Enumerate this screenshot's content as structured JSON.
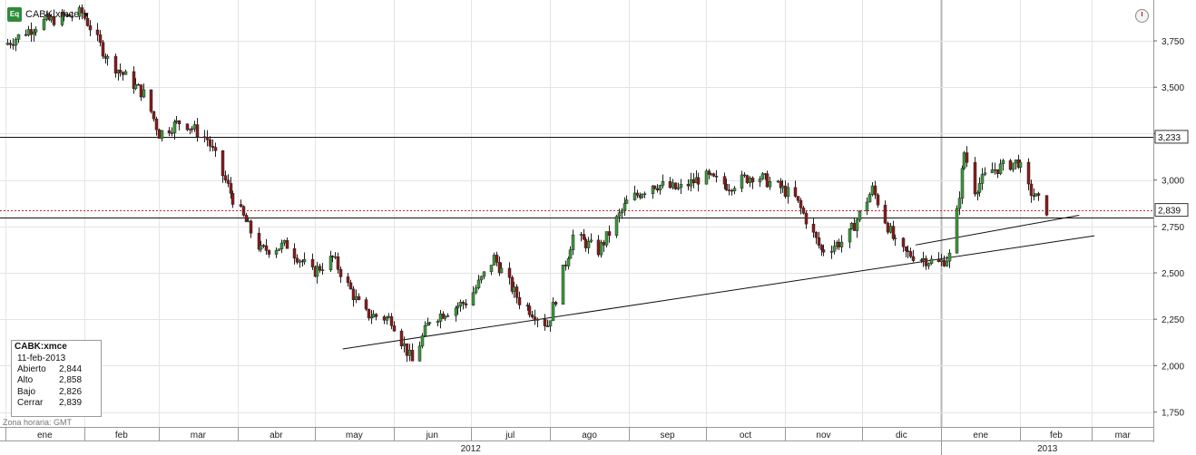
{
  "header": {
    "badge": "Eq",
    "symbol": "CABK:xmce",
    "dropdown_icon": "triangle-down-icon"
  },
  "info_box": {
    "symbol": "CABK:xmce",
    "date": "11-feb-2013",
    "rows": [
      {
        "label": "Abierto",
        "value": "2,844"
      },
      {
        "label": "Alto",
        "value": "2,858"
      },
      {
        "label": "Bajo",
        "value": "2,826"
      },
      {
        "label": "Cerrar",
        "value": "2,839"
      }
    ]
  },
  "timezone_label": "Zona horaria: GMT",
  "chart_data": {
    "type": "candlestick",
    "yaxis": {
      "ylim": [
        1.67,
        3.97
      ],
      "ticks": [
        1.75,
        2.0,
        2.25,
        2.5,
        2.75,
        3.0,
        3.25,
        3.5,
        3.75
      ],
      "tick_labels": [
        "1,750",
        "2,000",
        "2,250",
        "2,500",
        "2,750",
        "3,000",
        "3,250",
        "3,500",
        "3,750"
      ]
    },
    "xaxis": {
      "months": [
        "ene",
        "feb",
        "mar",
        "abr",
        "may",
        "jun",
        "jul",
        "ago",
        "sep",
        "oct",
        "nov",
        "dic",
        "ene",
        "feb",
        "mar"
      ],
      "years": [
        "2012",
        "2013"
      ]
    },
    "price_levels": [
      {
        "value": 3.233,
        "label": "3,233",
        "style": "solid"
      },
      {
        "value": 2.839,
        "label": "2,839",
        "style": "dashed-red"
      },
      {
        "value": 2.8,
        "label": "",
        "style": "solid"
      }
    ],
    "trendlines": [
      {
        "from": [
          "2012-05-12",
          2.09
        ],
        "to": [
          "2013-03-02",
          2.7
        ]
      },
      {
        "from": [
          "2012-12-22",
          2.65
        ],
        "to": [
          "2013-02-24",
          2.81
        ]
      }
    ],
    "anchors": [
      [
        "2012-01-01",
        3.73
      ],
      [
        "2012-01-15",
        3.85
      ],
      [
        "2012-01-31",
        3.9
      ],
      [
        "2012-02-10",
        3.65
      ],
      [
        "2012-02-25",
        3.45
      ],
      [
        "2012-03-01",
        3.25
      ],
      [
        "2012-03-10",
        3.32
      ],
      [
        "2012-03-20",
        3.22
      ],
      [
        "2012-03-30",
        2.9
      ],
      [
        "2012-04-10",
        2.62
      ],
      [
        "2012-04-20",
        2.65
      ],
      [
        "2012-04-30",
        2.5
      ],
      [
        "2012-05-08",
        2.58
      ],
      [
        "2012-05-20",
        2.28
      ],
      [
        "2012-05-31",
        2.25
      ],
      [
        "2012-06-08",
        2.02
      ],
      [
        "2012-06-15",
        2.25
      ],
      [
        "2012-06-30",
        2.35
      ],
      [
        "2012-07-10",
        2.58
      ],
      [
        "2012-07-20",
        2.35
      ],
      [
        "2012-07-31",
        2.22
      ],
      [
        "2012-08-10",
        2.7
      ],
      [
        "2012-08-20",
        2.62
      ],
      [
        "2012-08-31",
        2.88
      ],
      [
        "2012-09-10",
        2.98
      ],
      [
        "2012-09-20",
        2.95
      ],
      [
        "2012-09-30",
        3.02
      ],
      [
        "2012-10-10",
        2.97
      ],
      [
        "2012-10-20",
        3.03
      ],
      [
        "2012-10-31",
        2.95
      ],
      [
        "2012-11-05",
        2.9
      ],
      [
        "2012-11-15",
        2.62
      ],
      [
        "2012-11-25",
        2.68
      ],
      [
        "2012-12-05",
        2.95
      ],
      [
        "2012-12-15",
        2.62
      ],
      [
        "2012-12-31",
        2.55
      ],
      [
        "2013-01-05",
        2.6
      ],
      [
        "2013-01-07",
        2.82
      ],
      [
        "2013-01-10",
        3.15
      ],
      [
        "2013-01-14",
        2.95
      ],
      [
        "2013-01-20",
        3.05
      ],
      [
        "2013-01-31",
        3.1
      ],
      [
        "2013-02-04",
        2.95
      ],
      [
        "2013-02-11",
        2.839
      ]
    ]
  }
}
